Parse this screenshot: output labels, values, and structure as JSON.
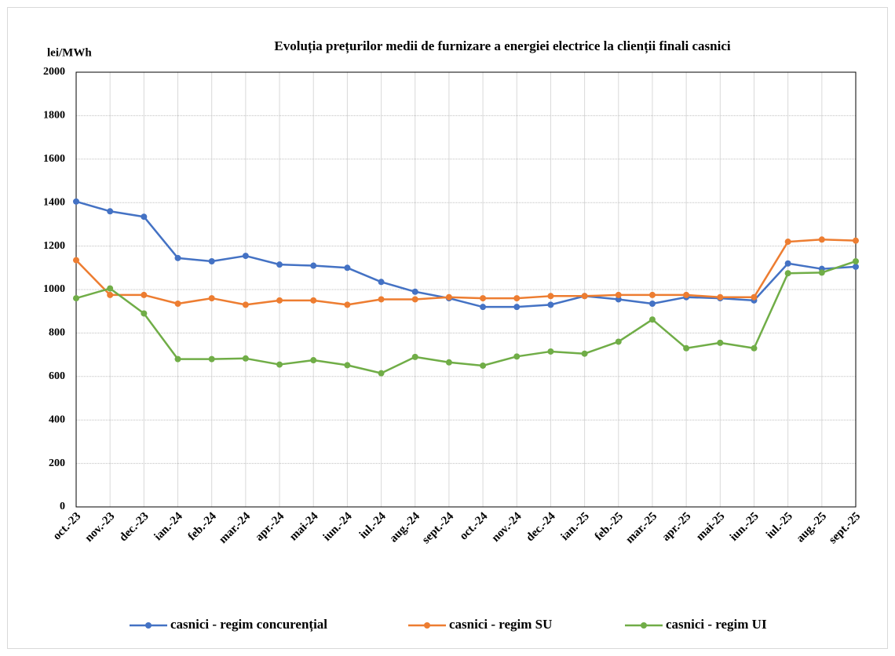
{
  "chart_data": {
    "type": "line",
    "title": "Evoluția prețurilor medii de furnizare a energiei electrice la clienții finali casnici",
    "y_label": "lei/MWh",
    "categories": [
      "oct.-23",
      "nov.-23",
      "dec.-23",
      "ian.-24",
      "feb.-24",
      "mar.-24",
      "apr.-24",
      "mai-24",
      "iun.-24",
      "iul.-24",
      "aug.-24",
      "sept.-24",
      "oct.-24",
      "nov.-24",
      "dec.-24",
      "ian.-25",
      "feb.-25",
      "mar.-25",
      "apr.-25",
      "mai-25",
      "iun.-25",
      "iul.-25",
      "aug.-25",
      "sept.-25"
    ],
    "series": [
      {
        "name": "casnici - regim concurențial",
        "color": "#4472c4",
        "values": [
          1405,
          1360,
          1335,
          1145,
          1130,
          1155,
          1115,
          1110,
          1100,
          1035,
          990,
          960,
          920,
          920,
          930,
          970,
          955,
          935,
          965,
          960,
          950,
          1120,
          1095,
          1105
        ]
      },
      {
        "name": "casnici - regim SU",
        "color": "#ed7d31",
        "values": [
          1135,
          975,
          975,
          935,
          960,
          930,
          950,
          950,
          930,
          955,
          955,
          965,
          960,
          960,
          970,
          970,
          975,
          975,
          975,
          965,
          965,
          1220,
          1230,
          1225
        ]
      },
      {
        "name": "casnici - regim UI",
        "color": "#70ad47",
        "values": [
          960,
          1005,
          890,
          680,
          680,
          683,
          655,
          675,
          652,
          615,
          690,
          665,
          650,
          692,
          715,
          705,
          760,
          862,
          730,
          755,
          730,
          1075,
          1078,
          1130
        ]
      }
    ],
    "ylim": [
      0,
      2000
    ],
    "yticks": [
      0,
      200,
      400,
      600,
      800,
      1000,
      1200,
      1400,
      1600,
      1800,
      2000
    ],
    "grid": true,
    "legend": "bottom"
  }
}
